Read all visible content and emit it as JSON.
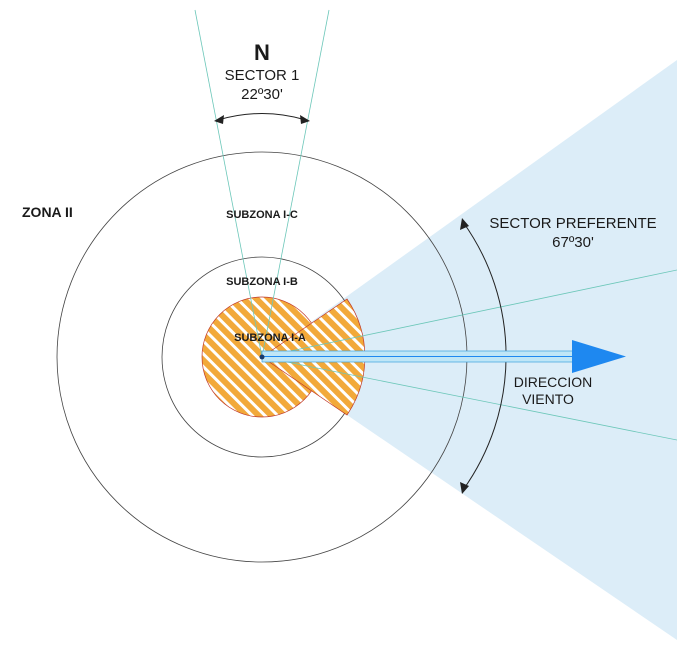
{
  "north": {
    "letter": "N",
    "sector_label": "SECTOR 1",
    "sector_angle": "22º30'"
  },
  "zones": {
    "zone_2": "ZONA II",
    "subzone_c": "SUBZONA I-C",
    "subzone_b": "SUBZONA I-B",
    "subzone_a": "SUBZONA I-A"
  },
  "preferred_sector": {
    "label": "SECTOR PREFERENTE",
    "angle": "67º30'"
  },
  "wind": {
    "line1": "DIRECCION",
    "line2": "VIENTO"
  },
  "colors": {
    "sector_fill": "#dcedf8",
    "hatch_base": "#f2a93a",
    "hatch_line": "#ffffff",
    "hatch_outline": "#c0392b",
    "arrow_fill": "#1e88f0",
    "arrow_shaft": "#bfe6f7",
    "guide_line": "#6cc7b9",
    "circle_stroke": "#444444"
  }
}
